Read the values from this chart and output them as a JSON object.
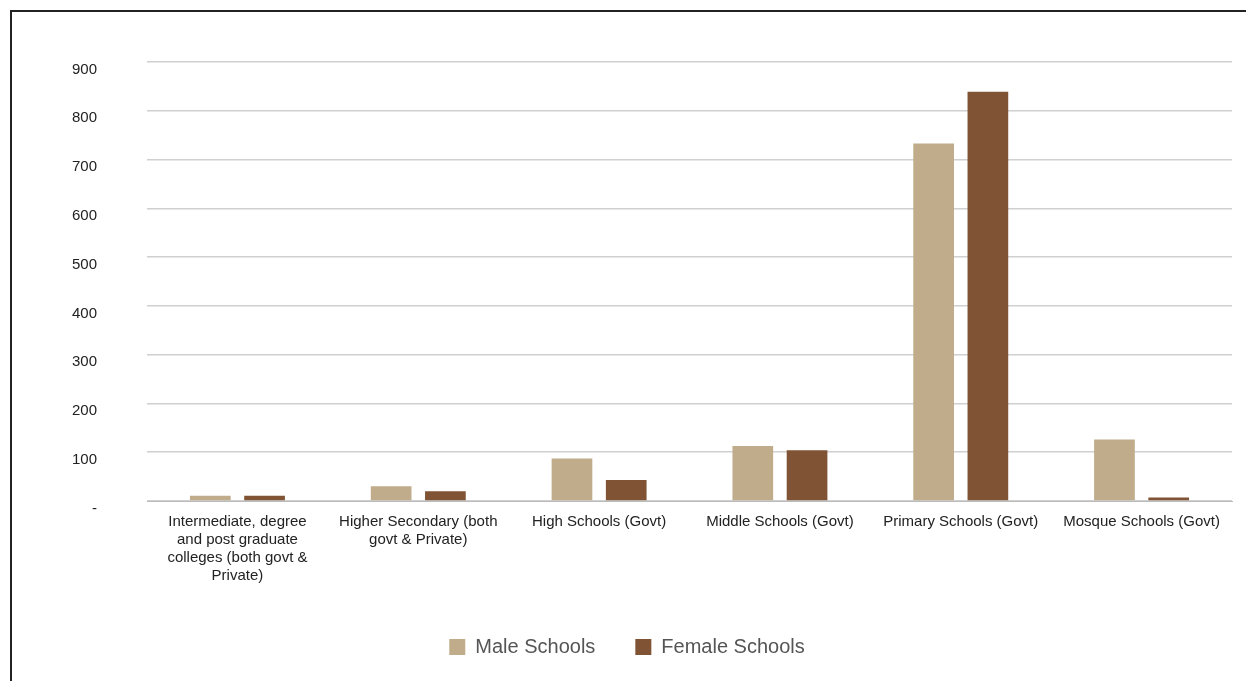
{
  "chart_data": {
    "type": "bar",
    "categories": [
      "Intermediate, degree and post graduate colleges (both govt & Private)",
      "Higher Secondary (both govt & Private)",
      "High Schools (Govt)",
      "Middle Schools (Govt)",
      "Primary Schools (Govt)",
      "Mosque Schools (Govt)"
    ],
    "series": [
      {
        "name": "Male Schools",
        "color": "#c0ab8a",
        "values": [
          11,
          30,
          87,
          113,
          733,
          126
        ]
      },
      {
        "name": "Female Schools",
        "color": "#7f5334",
        "values": [
          11,
          20,
          43,
          104,
          839,
          7
        ]
      }
    ],
    "ylim": [
      0,
      900
    ],
    "yticks": [
      {
        "value": 0,
        "label": "-"
      },
      100,
      200,
      300,
      400,
      500,
      600,
      700,
      800,
      900
    ],
    "grid": "y",
    "legend": "bottom"
  }
}
